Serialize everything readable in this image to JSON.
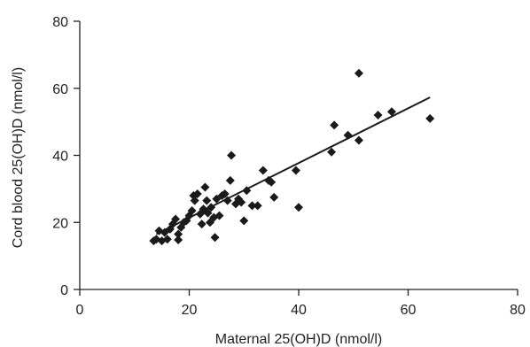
{
  "chart_data": {
    "type": "scatter",
    "xlabel": "Maternal 25(OH)D (nmol/l)",
    "ylabel": "Cord blood 25(OH)D (nmol/l)",
    "xlim": [
      0,
      80
    ],
    "ylim": [
      0,
      80
    ],
    "xticks": [
      0,
      20,
      40,
      60,
      80
    ],
    "yticks": [
      0,
      20,
      40,
      60,
      80
    ],
    "grid": false,
    "legend": "none",
    "series": [
      {
        "marker": "diamond",
        "color": "#1a1a1a",
        "points": [
          [
            13.5,
            14.5
          ],
          [
            14.0,
            15.0
          ],
          [
            14.5,
            17.5
          ],
          [
            15.0,
            14.5
          ],
          [
            15.5,
            17.0
          ],
          [
            16.0,
            15.0
          ],
          [
            16.5,
            18.0
          ],
          [
            17.0,
            19.5
          ],
          [
            17.5,
            21.0
          ],
          [
            18.0,
            16.5
          ],
          [
            18.0,
            14.8
          ],
          [
            18.5,
            18.5
          ],
          [
            19.0,
            20.0
          ],
          [
            19.5,
            20.5
          ],
          [
            20.0,
            22.0
          ],
          [
            20.5,
            23.5
          ],
          [
            20.8,
            28.0
          ],
          [
            21.0,
            26.5
          ],
          [
            21.5,
            28.5
          ],
          [
            22.0,
            22.5
          ],
          [
            22.3,
            19.5
          ],
          [
            22.6,
            24.0
          ],
          [
            22.9,
            30.5
          ],
          [
            23.2,
            26.5
          ],
          [
            23.4,
            22.8
          ],
          [
            23.8,
            20.0
          ],
          [
            24.0,
            24.5
          ],
          [
            24.5,
            21.5
          ],
          [
            24.7,
            15.5
          ],
          [
            25.0,
            27.0
          ],
          [
            25.5,
            22.0
          ],
          [
            26.0,
            28.0
          ],
          [
            26.5,
            28.5
          ],
          [
            27.0,
            26.5
          ],
          [
            27.5,
            32.5
          ],
          [
            27.7,
            40.0
          ],
          [
            28.5,
            25.5
          ],
          [
            29.0,
            27.0
          ],
          [
            29.5,
            26.0
          ],
          [
            30.0,
            20.5
          ],
          [
            30.5,
            29.5
          ],
          [
            31.5,
            25.0
          ],
          [
            32.5,
            25.0
          ],
          [
            33.5,
            35.5
          ],
          [
            34.5,
            32.5
          ],
          [
            35.0,
            32.0
          ],
          [
            35.5,
            27.5
          ],
          [
            39.5,
            35.5
          ],
          [
            40.0,
            24.5
          ],
          [
            46.0,
            41.0
          ],
          [
            46.5,
            49.0
          ],
          [
            49.0,
            46.0
          ],
          [
            51.0,
            44.5
          ],
          [
            51.0,
            64.5
          ],
          [
            54.5,
            52.0
          ],
          [
            57.0,
            53.0
          ],
          [
            64.0,
            51.0
          ]
        ]
      }
    ],
    "trendline": {
      "type": "linear",
      "x": [
        14,
        64
      ],
      "y": [
        16.5,
        57.3
      ]
    }
  }
}
